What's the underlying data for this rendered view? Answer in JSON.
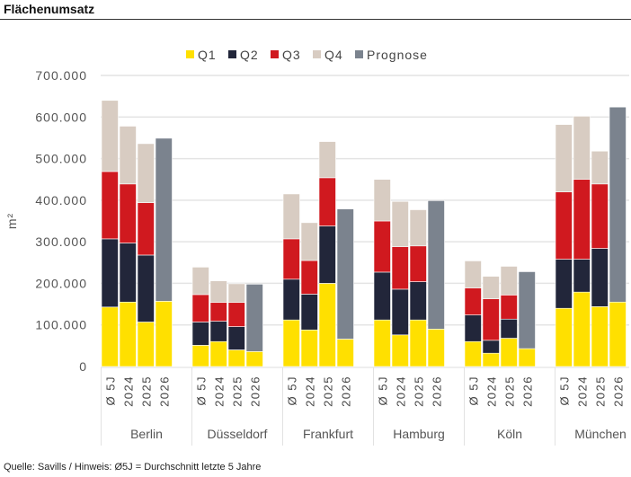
{
  "title": "Flächenumsatz",
  "footer": "Quelle: Savills / Hinweis: Ø5J = Durchschnitt letzte 5 Jahre",
  "chart_data": {
    "type": "bar",
    "stacked": true,
    "ylabel": "m²",
    "ylim": [
      0,
      700000
    ],
    "yticks": [
      0,
      100000,
      200000,
      300000,
      400000,
      500000,
      600000,
      700000
    ],
    "ytick_labels": [
      "0",
      "100.000",
      "200.000",
      "300.000",
      "400.000",
      "500.000",
      "600.000",
      "700.000"
    ],
    "grid": true,
    "legend_position": "top",
    "groups": [
      "Berlin",
      "Düsseldorf",
      "Frankfurt",
      "Hamburg",
      "Köln",
      "München"
    ],
    "categories": [
      "Ø 5J",
      "2024",
      "2025",
      "2026"
    ],
    "series": [
      {
        "name": "Q1",
        "color": "#FFE000",
        "values": [
          [
            143000,
            155000,
            107000,
            157000
          ],
          [
            51000,
            60000,
            40000,
            36000
          ],
          [
            112000,
            88000,
            200000,
            66000
          ],
          [
            112000,
            76000,
            112000,
            90000
          ],
          [
            60000,
            32000,
            68000,
            43000
          ],
          [
            140000,
            179000,
            144000,
            155000
          ]
        ]
      },
      {
        "name": "Q2",
        "color": "#22263A",
        "values": [
          [
            164000,
            142000,
            161000,
            0
          ],
          [
            56000,
            49000,
            56000,
            0
          ],
          [
            98000,
            86000,
            138000,
            0
          ],
          [
            115000,
            110000,
            92000,
            0
          ],
          [
            64000,
            31000,
            46000,
            0
          ],
          [
            118000,
            79000,
            140000,
            0
          ]
        ]
      },
      {
        "name": "Q3",
        "color": "#D0191F",
        "values": [
          [
            162000,
            142000,
            126000,
            0
          ],
          [
            66000,
            45000,
            58000,
            0
          ],
          [
            97000,
            81000,
            116000,
            0
          ],
          [
            123000,
            102000,
            86000,
            0
          ],
          [
            65000,
            100000,
            58000,
            0
          ],
          [
            162000,
            192000,
            155000,
            0
          ]
        ]
      },
      {
        "name": "Q4",
        "color": "#D8CCC2",
        "values": [
          [
            171000,
            139000,
            142000,
            0
          ],
          [
            66000,
            52000,
            45000,
            0
          ],
          [
            108000,
            91000,
            87000,
            0
          ],
          [
            100000,
            109000,
            87000,
            0
          ],
          [
            65000,
            54000,
            69000,
            0
          ],
          [
            162000,
            152000,
            79000,
            0
          ]
        ]
      },
      {
        "name": "Prognose",
        "color": "#7B838E",
        "values": [
          [
            0,
            0,
            0,
            392000
          ],
          [
            0,
            0,
            0,
            162000
          ],
          [
            0,
            0,
            0,
            313000
          ],
          [
            0,
            0,
            0,
            309000
          ],
          [
            0,
            0,
            0,
            185000
          ],
          [
            0,
            0,
            0,
            469000
          ]
        ]
      }
    ]
  }
}
